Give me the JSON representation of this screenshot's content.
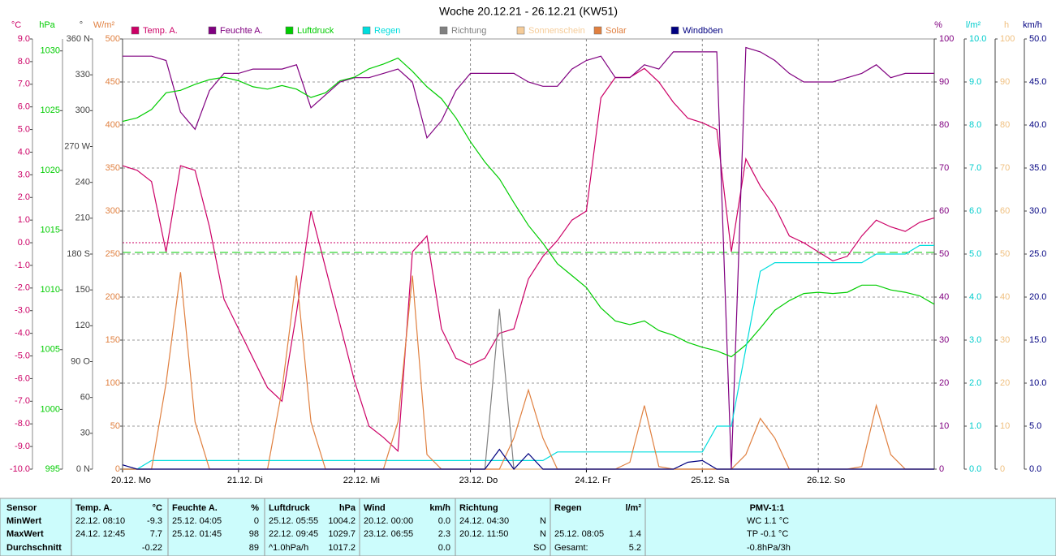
{
  "chart_data": {
    "type": "line",
    "title": "Woche 20.12.21 - 26.12.21 (KW51)",
    "day_labels": [
      "20.12. Mo",
      "21.12. Di",
      "22.12. Mi",
      "23.12. Do",
      "24.12. Fr",
      "25.12. Sa",
      "26.12. So"
    ],
    "axes": [
      {
        "unit": "°C",
        "side": "left",
        "color": "#cc0066",
        "ylim": [
          -10,
          9
        ],
        "yticks": [
          {
            "value": -10,
            "label": "-10.0"
          },
          {
            "value": -9,
            "label": "-9.0"
          },
          {
            "value": -8,
            "label": "-8.0"
          },
          {
            "value": -7,
            "label": "-7.0"
          },
          {
            "value": -6,
            "label": "-6.0"
          },
          {
            "value": -5,
            "label": "-5.0"
          },
          {
            "value": -4,
            "label": "-4.0"
          },
          {
            "value": -3,
            "label": "-3.0"
          },
          {
            "value": -2,
            "label": "-2.0"
          },
          {
            "value": -1,
            "label": "-1.0"
          },
          {
            "value": 0,
            "label": "0.0"
          },
          {
            "value": 1,
            "label": "1.0"
          },
          {
            "value": 2,
            "label": "2.0"
          },
          {
            "value": 3,
            "label": "3.0"
          },
          {
            "value": 4,
            "label": "4.0"
          },
          {
            "value": 5,
            "label": "5.0"
          },
          {
            "value": 6,
            "label": "6.0"
          },
          {
            "value": 7,
            "label": "7.0"
          },
          {
            "value": 8,
            "label": "8.0"
          },
          {
            "value": 9,
            "label": "9.0"
          }
        ]
      },
      {
        "unit": "hPa",
        "side": "left",
        "color": "#00cc00",
        "ylim": [
          995,
          1031
        ],
        "yticks": [
          995,
          1000,
          1005,
          1010,
          1015,
          1020,
          1025,
          1030
        ]
      },
      {
        "unit": "°",
        "side": "left",
        "color": "#404040",
        "ylim": [
          0,
          360
        ],
        "yticks": [
          {
            "value": 0,
            "label": "0 N"
          },
          30,
          60,
          {
            "value": 90,
            "label": "90 O"
          },
          120,
          150,
          {
            "value": 180,
            "label": "180 S"
          },
          210,
          240,
          {
            "value": 270,
            "label": "270 W"
          },
          300,
          330,
          {
            "value": 360,
            "label": "360 N"
          }
        ]
      },
      {
        "unit": "W/m²",
        "side": "left",
        "color": "#e08040",
        "ylim": [
          0,
          500
        ],
        "yticks": [
          0,
          50,
          100,
          150,
          200,
          250,
          300,
          350,
          400,
          450,
          500
        ]
      },
      {
        "unit": "%",
        "side": "right",
        "color": "#800080",
        "grid": true,
        "ylim": [
          0,
          100
        ],
        "yticks": [
          0,
          10,
          20,
          30,
          40,
          50,
          60,
          70,
          80,
          90,
          100
        ]
      },
      {
        "unit": "l/m²",
        "side": "right",
        "color": "#00cccc",
        "ylim": [
          0,
          10
        ],
        "yticks": [
          {
            "value": 0,
            "label": "0.0"
          },
          {
            "value": 1,
            "label": "1.0"
          },
          {
            "value": 2,
            "label": "2.0"
          },
          {
            "value": 3,
            "label": "3.0"
          },
          {
            "value": 4,
            "label": "4.0"
          },
          {
            "value": 5,
            "label": "5.0"
          },
          {
            "value": 6,
            "label": "6.0"
          },
          {
            "value": 7,
            "label": "7.0"
          },
          {
            "value": 8,
            "label": "8.0"
          },
          {
            "value": 9,
            "label": "9.0"
          },
          {
            "value": 10,
            "label": "10.0"
          }
        ]
      },
      {
        "unit": "h",
        "side": "right",
        "color": "#f0c080",
        "ylim": [
          0,
          100
        ],
        "yticks": [
          0,
          10,
          20,
          30,
          40,
          50,
          60,
          70,
          80,
          90,
          100
        ]
      },
      {
        "unit": "km/h",
        "side": "right",
        "color": "#000080",
        "ylim": [
          0,
          50
        ],
        "yticks": [
          {
            "value": 0,
            "label": "0.0"
          },
          {
            "value": 5,
            "label": "5.0"
          },
          {
            "value": 10,
            "label": "10.0"
          },
          {
            "value": 15,
            "label": "15.0"
          },
          {
            "value": 20,
            "label": "20.0"
          },
          {
            "value": 25,
            "label": "25.0"
          },
          {
            "value": 30,
            "label": "30.0"
          },
          {
            "value": 35,
            "label": "35.0"
          },
          {
            "value": 40,
            "label": "40.0"
          },
          {
            "value": 45,
            "label": "45.0"
          },
          {
            "value": 50,
            "label": "50.0"
          }
        ]
      }
    ],
    "series": [
      {
        "name": "Temp. A.",
        "color": "#cc0066",
        "axis": "°C",
        "values": [
          3.4,
          3.2,
          2.7,
          -0.4,
          3.4,
          3.2,
          0.7,
          -2.5,
          -3.8,
          -5.1,
          -6.4,
          -7.0,
          -3.1,
          1.4,
          -1.1,
          -3.6,
          -6.1,
          -8.1,
          -8.6,
          -9.2,
          -0.4,
          0.3,
          -3.8,
          -5.1,
          -5.4,
          -5.1,
          -4.0,
          -3.8,
          -1.6,
          -0.6,
          0.1,
          1.0,
          1.4,
          6.4,
          7.3,
          7.3,
          7.7,
          7.1,
          6.2,
          5.5,
          5.3,
          5.0,
          -0.4,
          3.7,
          2.5,
          1.6,
          0.3,
          0.0,
          -0.4,
          -0.8,
          -0.6,
          0.3,
          1.0,
          0.7,
          0.5,
          0.9,
          1.1
        ]
      },
      {
        "name": "Feuchte A.",
        "color": "#800080",
        "axis": "%",
        "values": [
          96,
          96,
          96,
          95,
          83,
          79,
          88,
          92,
          92,
          93,
          93,
          93,
          94,
          84,
          87,
          90,
          91,
          91,
          92,
          93,
          90,
          77,
          81,
          88,
          92,
          92,
          92,
          92,
          90,
          89,
          89,
          93,
          95,
          96,
          91,
          91,
          94,
          93,
          97,
          97,
          97,
          97,
          0,
          98,
          97,
          95,
          92,
          90,
          90,
          90,
          91,
          92,
          94,
          91,
          92,
          92,
          92
        ]
      },
      {
        "name": "Luftdruck",
        "color": "#00cc00",
        "axis": "hPa",
        "values": [
          1024.1,
          1024.4,
          1025.1,
          1026.5,
          1026.7,
          1027.2,
          1027.6,
          1027.8,
          1027.5,
          1027.0,
          1026.8,
          1027.1,
          1026.8,
          1026.1,
          1026.5,
          1027.5,
          1027.8,
          1028.5,
          1028.9,
          1029.4,
          1028.3,
          1027.0,
          1026.0,
          1024.4,
          1022.4,
          1020.7,
          1019.3,
          1017.3,
          1015.4,
          1013.9,
          1012.2,
          1011.2,
          1010.2,
          1008.5,
          1007.4,
          1007.1,
          1007.4,
          1006.6,
          1006.2,
          1005.6,
          1005.2,
          1004.9,
          1004.4,
          1005.4,
          1006.8,
          1008.3,
          1009.1,
          1009.7,
          1009.8,
          1009.7,
          1009.8,
          1010.4,
          1010.4,
          1010.0,
          1009.8,
          1009.5,
          1008.8
        ]
      },
      {
        "name": "Regen",
        "color": "#00dddd",
        "axis": "l/m²",
        "values": [
          0,
          0,
          0.2,
          0.2,
          0.2,
          0.2,
          0.2,
          0.2,
          0.2,
          0.2,
          0.2,
          0.2,
          0.2,
          0.2,
          0.2,
          0.2,
          0.2,
          0.2,
          0.2,
          0.2,
          0.2,
          0.2,
          0.2,
          0.2,
          0.2,
          0.2,
          0.2,
          0.2,
          0.2,
          0.2,
          0.4,
          0.4,
          0.4,
          0.4,
          0.4,
          0.4,
          0.4,
          0.4,
          0.4,
          0.4,
          0.4,
          1.0,
          1.0,
          2.8,
          4.6,
          4.8,
          4.8,
          4.8,
          4.8,
          4.8,
          4.8,
          4.8,
          5.0,
          5.0,
          5.0,
          5.2,
          5.2
        ]
      },
      {
        "name": "Richtung",
        "color": "#808080",
        "axis": "°",
        "values": [
          0,
          0,
          0,
          0,
          0,
          0,
          0,
          0,
          0,
          0,
          0,
          0,
          0,
          0,
          0,
          0,
          0,
          0,
          0,
          0,
          0,
          0,
          0,
          0,
          0,
          0,
          134,
          0,
          0,
          0,
          0,
          0,
          0,
          0,
          0,
          0,
          0,
          0,
          0,
          0,
          0,
          0,
          0,
          0,
          0,
          0,
          0,
          0,
          0,
          0,
          0,
          0,
          0,
          0,
          0,
          0,
          0
        ]
      },
      {
        "name": "Sonnenschein",
        "color": "#f5cc99",
        "axis": "h",
        "values": [
          0,
          0,
          0,
          0,
          0,
          0,
          0,
          0,
          0,
          0,
          0,
          0,
          0,
          0,
          0,
          0,
          0,
          0,
          0,
          0,
          0,
          0,
          0,
          0,
          0,
          0,
          0,
          0,
          0,
          0,
          0,
          0,
          0,
          0,
          0,
          0,
          0,
          0,
          0,
          0,
          0,
          0,
          0,
          0,
          0,
          0,
          0,
          0,
          0,
          0,
          0,
          0,
          0,
          0,
          0,
          0,
          0
        ]
      },
      {
        "name": "Solar",
        "color": "#e08040",
        "axis": "W/m²",
        "values": [
          0,
          0,
          0,
          100,
          229,
          55,
          0,
          0,
          0,
          0,
          0,
          92,
          225,
          55,
          0,
          0,
          0,
          0,
          0,
          55,
          225,
          17,
          0,
          0,
          0,
          0,
          0,
          36,
          92,
          36,
          0,
          0,
          0,
          0,
          0,
          8,
          74,
          3,
          0,
          0,
          0,
          0,
          0,
          17,
          59,
          36,
          0,
          0,
          0,
          0,
          0,
          3,
          74,
          17,
          0,
          0,
          0
        ]
      },
      {
        "name": "Windböen",
        "color": "#000080",
        "axis": "km/h",
        "values": [
          0.5,
          0,
          0,
          0,
          0,
          0,
          0,
          0,
          0,
          0,
          0,
          0,
          0,
          0,
          0,
          0,
          0,
          0,
          0,
          0,
          0,
          0,
          0,
          0,
          0,
          0,
          2.3,
          0,
          1.8,
          0,
          0,
          0,
          0,
          0,
          0,
          0,
          0,
          0,
          0,
          0.8,
          1.0,
          0,
          0,
          0,
          0,
          0,
          0,
          0,
          0,
          0,
          0,
          0,
          0,
          0,
          0,
          0,
          0
        ]
      }
    ]
  },
  "table": {
    "row_labels": [
      "Sensor",
      "MinWert",
      "MaxWert",
      "Durchschnitt"
    ],
    "groups": [
      {
        "label": "Temp. A.",
        "unit": "°C",
        "rows": [
          [
            "22.12.  08:10",
            "-9.3"
          ],
          [
            "24.12.  12:45",
            "7.7"
          ],
          [
            null,
            "-0.22"
          ]
        ]
      },
      {
        "label": "Feuchte A.",
        "unit": "%",
        "rows": [
          [
            "25.12.  04:05",
            "0"
          ],
          [
            "25.12.  01:45",
            "98"
          ],
          [
            null,
            "89"
          ]
        ]
      },
      {
        "label": "Luftdruck",
        "unit": "hPa",
        "rows": [
          [
            "25.12.  05:55",
            "1004.2"
          ],
          [
            "22.12.  09:45",
            "1029.7"
          ],
          [
            "^1.0hPa/h",
            "1017.2"
          ]
        ]
      },
      {
        "label": "Wind",
        "unit": "km/h",
        "rows": [
          [
            "20.12.  00:00",
            "0.0"
          ],
          [
            "23.12.  06:55",
            "2.3"
          ],
          [
            null,
            "0.0"
          ]
        ]
      },
      {
        "label": "Richtung",
        "rows": [
          [
            "24.12.  04:30",
            "N"
          ],
          [
            "20.12.  11:50",
            "N"
          ],
          [
            null,
            "SO"
          ]
        ]
      },
      {
        "label": "Regen",
        "unit": "l/m²",
        "rows": [
          [
            null,
            null
          ],
          [
            "25.12.  08:05",
            "1.4"
          ],
          [
            "Gesamt:",
            "5.2"
          ]
        ]
      }
    ],
    "pmv": {
      "label": "PMV-1:1",
      "rows": [
        "WC 1.1 °C",
        "TP -0.1 °C",
        "-0.8hPa/3h"
      ]
    }
  }
}
